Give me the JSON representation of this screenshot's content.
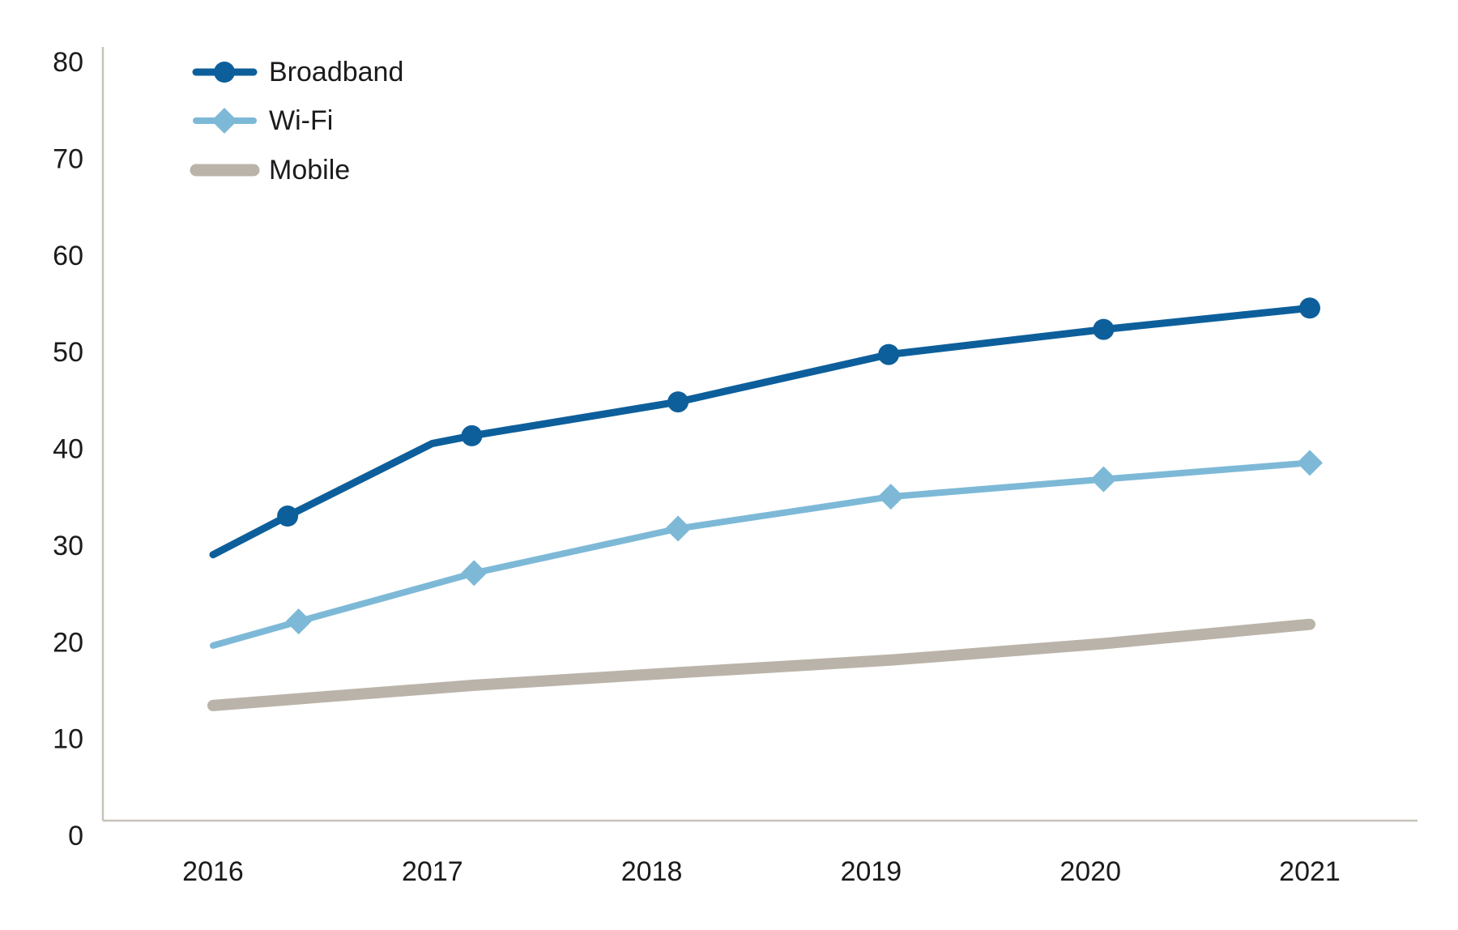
{
  "chart_data": {
    "type": "line",
    "title": "",
    "x_axis": {
      "labels": [
        "2016",
        "2017",
        "2018",
        "2019",
        "2020",
        "2021"
      ],
      "min": 2016,
      "max": 2021
    },
    "y_axis": {
      "ticks": [
        0,
        10,
        20,
        30,
        40,
        50,
        60,
        70,
        80
      ],
      "min": 0,
      "max": 80
    },
    "grid": "off",
    "legend_position": "top-left",
    "axis_color": "#c8c3ba",
    "text_color": "#1b1b1b",
    "series": [
      {
        "name": "Broadband",
        "color": "#0d5f9b",
        "marker": "circle",
        "line_width": 9,
        "points": [
          {
            "x": 2016.0,
            "y": 27.5,
            "show_marker": false
          },
          {
            "x": 2016.34,
            "y": 31.5,
            "show_marker": true
          },
          {
            "x": 2017.0,
            "y": 39.0,
            "show_marker": false
          },
          {
            "x": 2017.18,
            "y": 39.8,
            "show_marker": true
          },
          {
            "x": 2018.12,
            "y": 43.3,
            "show_marker": true
          },
          {
            "x": 2019.08,
            "y": 48.2,
            "show_marker": true
          },
          {
            "x": 2020.06,
            "y": 50.8,
            "show_marker": true
          },
          {
            "x": 2021.0,
            "y": 53.0,
            "show_marker": true
          }
        ]
      },
      {
        "name": "Wi-Fi",
        "color": "#7db9d7",
        "marker": "diamond",
        "line_width": 8,
        "points": [
          {
            "x": 2016.0,
            "y": 18.1,
            "show_marker": false
          },
          {
            "x": 2016.39,
            "y": 20.6,
            "show_marker": true
          },
          {
            "x": 2017.19,
            "y": 25.6,
            "show_marker": true
          },
          {
            "x": 2018.12,
            "y": 30.2,
            "show_marker": true
          },
          {
            "x": 2019.09,
            "y": 33.5,
            "show_marker": true
          },
          {
            "x": 2020.06,
            "y": 35.3,
            "show_marker": true
          },
          {
            "x": 2021.0,
            "y": 37.0,
            "show_marker": true
          }
        ]
      },
      {
        "name": "Mobile",
        "color": "#bab3a9",
        "marker": "none",
        "line_width": 14,
        "points": [
          {
            "x": 2016.0,
            "y": 11.9,
            "show_marker": false
          },
          {
            "x": 2016.39,
            "y": 12.6,
            "show_marker": false
          },
          {
            "x": 2017.19,
            "y": 14.0,
            "show_marker": false
          },
          {
            "x": 2018.12,
            "y": 15.3,
            "show_marker": false
          },
          {
            "x": 2019.09,
            "y": 16.6,
            "show_marker": false
          },
          {
            "x": 2020.06,
            "y": 18.3,
            "show_marker": false
          },
          {
            "x": 2021.0,
            "y": 20.3,
            "show_marker": false
          }
        ]
      }
    ]
  }
}
